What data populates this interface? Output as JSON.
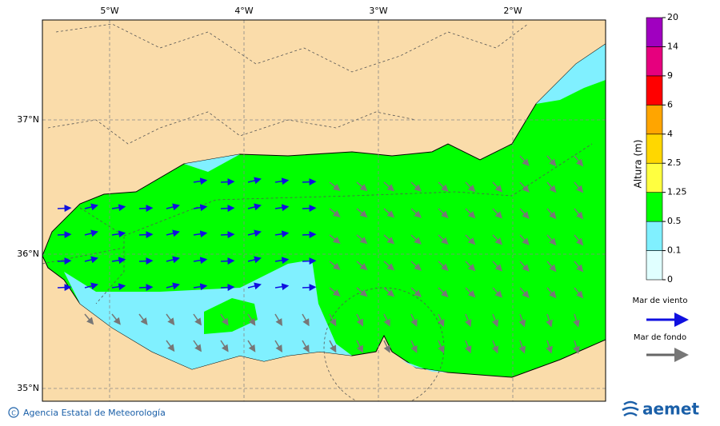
{
  "map": {
    "lon_labels": [
      "5°W",
      "4°W",
      "3°W",
      "2°W"
    ],
    "lat_labels": [
      "37°N",
      "36°N",
      "35°N"
    ]
  },
  "legend": {
    "title": "Altura (m)",
    "levels": [
      0,
      0.1,
      0.5,
      1.25,
      2.5,
      4,
      6,
      9,
      14,
      20
    ],
    "colors": [
      "#e0ffff",
      "#80f0ff",
      "#00ff00",
      "#ffff40",
      "#ffd700",
      "#ffa500",
      "#ff0000",
      "#e6007e",
      "#a000c0"
    ]
  },
  "arrows": {
    "wind": "Mar de viento",
    "swell": "Mar de fondo"
  },
  "footer": {
    "credit": "Agencia Estatal de Meteorología",
    "logo": "aemet"
  }
}
